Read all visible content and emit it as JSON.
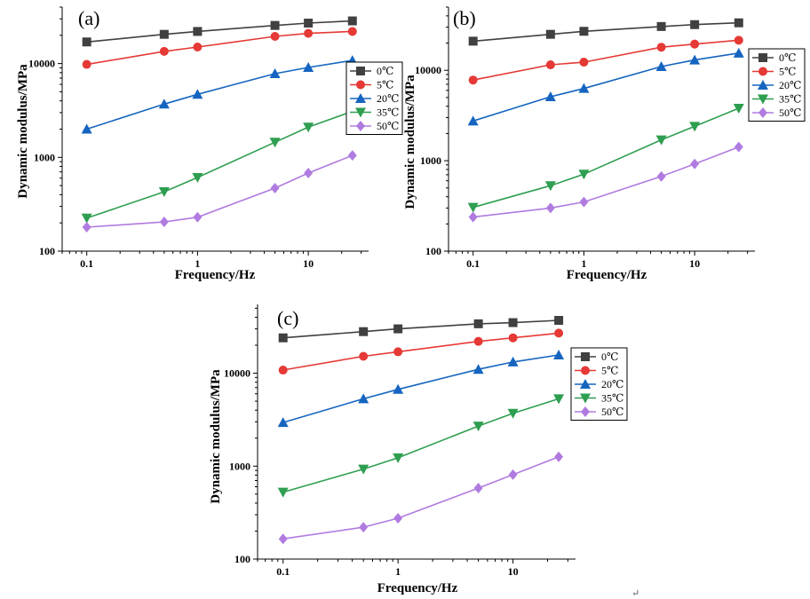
{
  "chart_data": [
    {
      "type": "line",
      "panel": "(a)",
      "xscale": "log",
      "yscale": "log",
      "xlabel": "Frequency/Hz",
      "ylabel": "Dynamic modulus/MPa",
      "xlim": [
        0.06,
        35
      ],
      "ylim": [
        100,
        40000
      ],
      "xticks": [
        "0.1",
        "1",
        "10"
      ],
      "yticks": [
        "100",
        "1000",
        "10000"
      ],
      "x": [
        0.1,
        0.5,
        1,
        5,
        10,
        25
      ],
      "legend_position": "right",
      "series": [
        {
          "name": "0℃",
          "color": "#404040",
          "marker": "square",
          "values": [
            17000,
            20500,
            22000,
            25500,
            27000,
            28500
          ]
        },
        {
          "name": "5℃",
          "color": "#e53935",
          "marker": "circle",
          "values": [
            9800,
            13500,
            15000,
            19500,
            21000,
            22000
          ]
        },
        {
          "name": "20℃",
          "color": "#1565c0",
          "marker": "triangle-up",
          "values": [
            2000,
            3700,
            4700,
            7800,
            9100,
            10800
          ]
        },
        {
          "name": "35℃",
          "color": "#2e9e50",
          "marker": "triangle-down",
          "values": [
            225,
            430,
            610,
            1450,
            2100,
            3100
          ]
        },
        {
          "name": "50℃",
          "color": "#b07be0",
          "marker": "diamond",
          "values": [
            180,
            205,
            230,
            470,
            680,
            1050
          ]
        }
      ]
    },
    {
      "type": "line",
      "panel": "(b)",
      "xscale": "log",
      "yscale": "log",
      "xlabel": "Frequency/Hz",
      "ylabel": "Dynamic modulus/MPa",
      "xlim": [
        0.06,
        35
      ],
      "ylim": [
        100,
        50000
      ],
      "xticks": [
        "0.1",
        "1",
        "10"
      ],
      "yticks": [
        "100",
        "1000",
        "10000"
      ],
      "x": [
        0.1,
        0.5,
        1,
        5,
        10,
        25
      ],
      "legend_position": "right",
      "series": [
        {
          "name": "0℃",
          "color": "#404040",
          "marker": "square",
          "values": [
            21000,
            25000,
            27000,
            30500,
            32000,
            33500
          ]
        },
        {
          "name": "5℃",
          "color": "#e53935",
          "marker": "circle",
          "values": [
            7800,
            11500,
            12300,
            18000,
            19500,
            21500
          ]
        },
        {
          "name": "20℃",
          "color": "#1565c0",
          "marker": "triangle-up",
          "values": [
            2750,
            5100,
            6300,
            11000,
            13000,
            15500
          ]
        },
        {
          "name": "35℃",
          "color": "#2e9e50",
          "marker": "triangle-down",
          "values": [
            305,
            530,
            710,
            1700,
            2400,
            3800
          ]
        },
        {
          "name": "50℃",
          "color": "#b07be0",
          "marker": "diamond",
          "values": [
            238,
            300,
            350,
            670,
            920,
            1420
          ]
        }
      ]
    },
    {
      "type": "line",
      "panel": "(c)",
      "xscale": "log",
      "yscale": "log",
      "xlabel": "Frequency/Hz",
      "ylabel": "Dynamic modulus/MPa",
      "xlim": [
        0.06,
        35
      ],
      "ylim": [
        100,
        55000
      ],
      "xticks": [
        "0.1",
        "1",
        "10"
      ],
      "yticks": [
        "100",
        "1000",
        "10000"
      ],
      "x": [
        0.1,
        0.5,
        1,
        5,
        10,
        25
      ],
      "legend_position": "right",
      "series": [
        {
          "name": "0℃",
          "color": "#404040",
          "marker": "square",
          "values": [
            24000,
            28000,
            30000,
            34000,
            35000,
            37000
          ]
        },
        {
          "name": "5℃",
          "color": "#e53935",
          "marker": "circle",
          "values": [
            10800,
            15200,
            17000,
            22000,
            24000,
            27000
          ]
        },
        {
          "name": "20℃",
          "color": "#1565c0",
          "marker": "triangle-up",
          "values": [
            2950,
            5300,
            6700,
            11000,
            13200,
            15700
          ]
        },
        {
          "name": "35℃",
          "color": "#2e9e50",
          "marker": "triangle-down",
          "values": [
            525,
            930,
            1230,
            2700,
            3700,
            5300
          ]
        },
        {
          "name": "50℃",
          "color": "#b07be0",
          "marker": "diamond",
          "values": [
            165,
            220,
            275,
            580,
            810,
            1260
          ]
        }
      ]
    }
  ],
  "corner_mark": "↵"
}
